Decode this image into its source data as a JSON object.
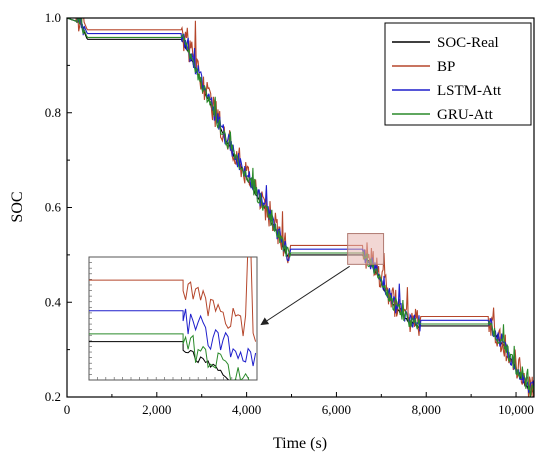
{
  "chart_data": {
    "type": "line",
    "title": "",
    "xlabel": "Time (s)",
    "ylabel": "SOC",
    "xlim": [
      0,
      10400
    ],
    "ylim": [
      0.2,
      1.0
    ],
    "x_ticks": [
      0,
      2000,
      4000,
      6000,
      8000,
      10000
    ],
    "x_tick_labels": [
      "0",
      "2,000",
      "4,000",
      "6,000",
      "8,000",
      "10,000"
    ],
    "y_ticks": [
      0.2,
      0.4,
      0.6,
      0.8,
      1.0
    ],
    "y_tick_labels": [
      "0.2",
      "0.4",
      "0.6",
      "0.8",
      "1.0"
    ],
    "grid": false,
    "legend_position": "top-right",
    "base_profile": {
      "x": [
        0,
        300,
        450,
        2550,
        2700,
        3000,
        3300,
        3600,
        3900,
        4200,
        4500,
        4800,
        4900,
        5100,
        6600,
        6900,
        7100,
        7300,
        7600,
        7800,
        9400,
        9700,
        10000,
        10300
      ],
      "y": [
        1.0,
        0.99,
        0.955,
        0.955,
        0.93,
        0.86,
        0.79,
        0.73,
        0.68,
        0.63,
        0.58,
        0.52,
        0.5,
        0.5,
        0.5,
        0.46,
        0.42,
        0.39,
        0.36,
        0.35,
        0.35,
        0.31,
        0.26,
        0.21
      ]
    },
    "series": [
      {
        "name": "SOC-Real",
        "color": "#000000",
        "offset": 0.0,
        "noise": 0.004
      },
      {
        "name": "BP",
        "color": "#b5462b",
        "offset": 0.02,
        "noise": 0.03
      },
      {
        "name": "LSTM-Att",
        "color": "#1f1fcc",
        "offset": 0.012,
        "noise": 0.018
      },
      {
        "name": "GRU-Att",
        "color": "#2a8a2a",
        "offset": 0.004,
        "noise": 0.014
      }
    ],
    "zoom_region": {
      "x": [
        6250,
        7050
      ],
      "y": [
        0.48,
        0.545
      ]
    },
    "inset": {
      "series_levels": [
        {
          "name": "SOC-Real",
          "value": 0.33
        },
        {
          "name": "BP",
          "value": 0.41
        },
        {
          "name": "LSTM-Att",
          "value": 0.37
        },
        {
          "name": "GRU-Att",
          "value": 0.34
        }
      ]
    }
  }
}
